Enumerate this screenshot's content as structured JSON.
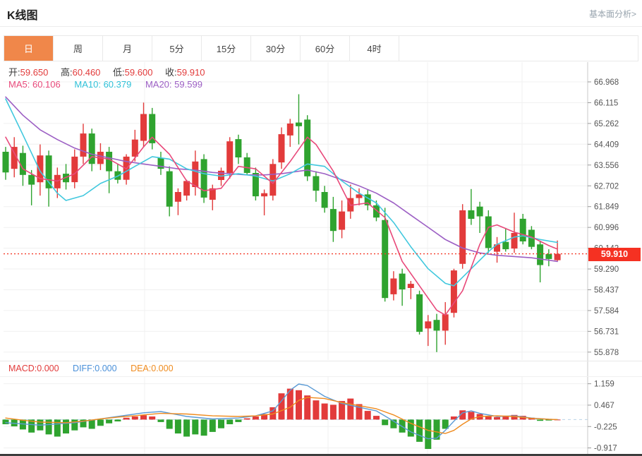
{
  "header": {
    "title": "K线图",
    "link": "基本面分析>"
  },
  "tabs": {
    "items": [
      "日",
      "周",
      "月",
      "5分",
      "15分",
      "30分",
      "60分",
      "4时"
    ],
    "active": "日",
    "active_index": 0
  },
  "quote_bar": {
    "open_label": "开:",
    "open": "59.650",
    "high_label": "高:",
    "high": "60.460",
    "low_label": "低:",
    "low": "59.600",
    "close_label": "收:",
    "close": "59.910"
  },
  "ma_bar": {
    "ma5_label": "MA5:",
    "ma5": "60.106",
    "ma10_label": "MA10:",
    "ma10": "60.379",
    "ma20_label": "MA20:",
    "ma20": "59.599"
  },
  "macd_bar": {
    "macd_label": "MACD:",
    "macd": "0.000",
    "diff_label": "DIFF:",
    "diff": "0.000",
    "dea_label": "DEA:",
    "dea": "0.000"
  },
  "price_tag": {
    "value": "59.910"
  },
  "colors": {
    "up": "#e23b3b",
    "down": "#2fa32f",
    "ma5": "#e8497a",
    "ma10": "#41c8de",
    "ma20": "#9c5fc4",
    "diff": "#5b9bd5",
    "dea": "#ef8b1e",
    "price": "#f53b2a",
    "tab_active": "#f0874a",
    "grid": "#f0f0f0",
    "axis": "#c8c8c8",
    "axis_text": "#555555",
    "zero_dash": "#b9d2e8"
  },
  "chart_data": [
    {
      "type": "candlestick",
      "title": "K线图 (日)",
      "legend": [
        "MA5",
        "MA10",
        "MA20"
      ],
      "y_axis_labels": [
        "66.968",
        "66.115",
        "65.262",
        "64.409",
        "63.556",
        "62.702",
        "61.849",
        "60.996",
        "60.142",
        "59.290",
        "58.437",
        "57.584",
        "56.731",
        "55.878"
      ],
      "ylim": [
        55.45,
        67.3
      ],
      "grid": true,
      "price_line": 59.91,
      "last_ohlc": {
        "open": 59.65,
        "high": 60.46,
        "low": 59.6,
        "close": 59.91
      },
      "candles": [
        [
          64.1,
          64.3,
          62.95,
          63.25
        ],
        [
          63.4,
          64.7,
          63.05,
          64.3
        ],
        [
          64.05,
          64.35,
          62.7,
          63.15
        ],
        [
          63.15,
          63.35,
          61.9,
          62.75
        ],
        [
          62.85,
          64.4,
          62.3,
          63.95
        ],
        [
          63.95,
          64.15,
          61.85,
          62.6
        ],
        [
          62.6,
          63.45,
          62.2,
          63.15
        ],
        [
          63.2,
          63.6,
          62.55,
          62.85
        ],
        [
          62.85,
          64.2,
          62.6,
          63.9
        ],
        [
          63.9,
          65.25,
          63.6,
          64.85
        ],
        [
          64.85,
          65.05,
          63.3,
          63.6
        ],
        [
          63.6,
          64.45,
          63.35,
          64.1
        ],
        [
          64.1,
          64.3,
          62.4,
          63.3
        ],
        [
          63.3,
          63.6,
          62.8,
          62.95
        ],
        [
          62.95,
          64.0,
          62.75,
          63.9
        ],
        [
          63.9,
          65.0,
          63.7,
          64.6
        ],
        [
          64.55,
          66.12,
          64.3,
          65.65
        ],
        [
          65.65,
          65.9,
          64.2,
          64.45
        ],
        [
          63.85,
          64.1,
          63.15,
          63.4
        ],
        [
          63.3,
          63.5,
          61.45,
          61.85
        ],
        [
          62.05,
          62.6,
          61.5,
          62.45
        ],
        [
          62.3,
          62.95,
          62.1,
          62.9
        ],
        [
          62.65,
          64.15,
          62.3,
          63.7
        ],
        [
          63.8,
          64.0,
          62.0,
          62.22
        ],
        [
          62.13,
          62.75,
          61.7,
          62.6
        ],
        [
          62.94,
          63.45,
          62.7,
          63.32
        ],
        [
          63.23,
          64.7,
          63.0,
          64.53
        ],
        [
          64.62,
          64.8,
          63.6,
          63.87
        ],
        [
          63.87,
          64.05,
          63.15,
          63.23
        ],
        [
          63.23,
          63.45,
          62.1,
          62.27
        ],
        [
          62.27,
          62.55,
          61.49,
          62.4
        ],
        [
          62.3,
          63.8,
          62.1,
          63.6
        ],
        [
          63.66,
          65.1,
          63.4,
          64.82
        ],
        [
          64.77,
          65.45,
          64.3,
          65.26
        ],
        [
          65.3,
          66.46,
          64.4,
          65.15
        ],
        [
          65.42,
          65.6,
          62.9,
          63.09
        ],
        [
          63.1,
          63.3,
          62.05,
          62.5
        ],
        [
          62.45,
          62.7,
          61.6,
          61.8
        ],
        [
          61.75,
          62.25,
          60.4,
          60.85
        ],
        [
          60.9,
          62.1,
          60.55,
          61.65
        ],
        [
          61.65,
          62.75,
          61.35,
          62.2
        ],
        [
          62.2,
          62.6,
          61.9,
          62.35
        ],
        [
          62.35,
          62.55,
          61.7,
          61.9
        ],
        [
          61.9,
          62.1,
          61.25,
          61.4
        ],
        [
          61.3,
          61.8,
          57.95,
          58.1
        ],
        [
          58.25,
          59.2,
          58.0,
          58.9
        ],
        [
          59.1,
          59.3,
          57.78,
          58.45
        ],
        [
          58.51,
          58.8,
          58.05,
          58.68
        ],
        [
          58.25,
          58.4,
          56.6,
          56.71
        ],
        [
          56.85,
          57.4,
          56.13,
          57.14
        ],
        [
          57.2,
          57.45,
          55.88,
          56.76
        ],
        [
          56.76,
          57.93,
          56.18,
          57.43
        ],
        [
          57.49,
          59.3,
          57.3,
          59.23
        ],
        [
          59.5,
          61.95,
          59.3,
          61.7
        ],
        [
          61.7,
          62.57,
          61.1,
          61.35
        ],
        [
          61.85,
          62.05,
          60.77,
          61.45
        ],
        [
          61.45,
          61.7,
          59.95,
          60.15
        ],
        [
          60.0,
          60.6,
          59.55,
          60.3
        ],
        [
          60.4,
          60.95,
          60.0,
          60.1
        ],
        [
          60.13,
          61.6,
          59.95,
          60.77
        ],
        [
          61.35,
          61.55,
          60.3,
          60.42
        ],
        [
          60.9,
          61.05,
          60.1,
          60.2
        ],
        [
          60.3,
          60.45,
          58.74,
          59.45
        ],
        [
          59.9,
          60.1,
          59.4,
          59.7
        ],
        [
          59.65,
          60.46,
          59.6,
          59.91
        ]
      ],
      "ma5_points": [
        [
          1,
          64.7
        ],
        [
          3,
          63.4
        ],
        [
          5,
          63.0
        ],
        [
          7,
          62.9
        ],
        [
          9,
          63.2
        ],
        [
          11,
          63.9
        ],
        [
          13,
          63.8
        ],
        [
          15,
          63.4
        ],
        [
          17,
          64.3
        ],
        [
          18,
          64.7
        ],
        [
          20,
          64.0
        ],
        [
          22,
          62.9
        ],
        [
          24,
          62.5
        ],
        [
          26,
          62.6
        ],
        [
          28,
          63.5
        ],
        [
          30,
          63.4
        ],
        [
          32,
          62.8
        ],
        [
          34,
          63.7
        ],
        [
          36,
          64.7
        ],
        [
          37,
          64.4
        ],
        [
          39,
          63.3
        ],
        [
          41,
          61.9
        ],
        [
          43,
          62.0
        ],
        [
          45,
          61.4
        ],
        [
          47,
          59.6
        ],
        [
          49,
          58.6
        ],
        [
          51,
          57.6
        ],
        [
          52,
          57.4
        ],
        [
          54,
          58.4
        ],
        [
          56,
          60.3
        ],
        [
          57,
          61.0
        ],
        [
          58,
          61.1
        ],
        [
          60,
          60.8
        ],
        [
          62,
          60.6
        ],
        [
          64,
          60.25
        ],
        [
          65,
          60.106
        ]
      ],
      "ma10_points": [
        [
          1,
          66.27
        ],
        [
          3,
          64.8
        ],
        [
          5,
          63.3
        ],
        [
          7,
          62.4
        ],
        [
          8,
          62.1
        ],
        [
          10,
          62.3
        ],
        [
          12,
          62.8
        ],
        [
          14,
          63.1
        ],
        [
          16,
          63.5
        ],
        [
          18,
          63.9
        ],
        [
          20,
          63.8
        ],
        [
          22,
          63.4
        ],
        [
          24,
          63.2
        ],
        [
          26,
          63.1
        ],
        [
          28,
          63.2
        ],
        [
          30,
          63.1
        ],
        [
          32,
          62.9
        ],
        [
          34,
          63.2
        ],
        [
          36,
          63.6
        ],
        [
          38,
          63.5
        ],
        [
          40,
          62.9
        ],
        [
          42,
          62.4
        ],
        [
          44,
          62.0
        ],
        [
          46,
          61.2
        ],
        [
          48,
          60.2
        ],
        [
          50,
          59.3
        ],
        [
          52,
          58.7
        ],
        [
          53,
          58.6
        ],
        [
          55,
          59.3
        ],
        [
          57,
          60.0
        ],
        [
          58,
          60.3
        ],
        [
          60,
          60.6
        ],
        [
          61,
          60.65
        ],
        [
          63,
          60.5
        ],
        [
          65,
          60.379
        ]
      ],
      "ma20_points": [
        [
          1,
          66.35
        ],
        [
          3,
          65.6
        ],
        [
          5,
          65.0
        ],
        [
          7,
          64.6
        ],
        [
          9,
          64.25
        ],
        [
          11,
          64.0
        ],
        [
          13,
          63.85
        ],
        [
          15,
          63.7
        ],
        [
          17,
          63.6
        ],
        [
          19,
          63.5
        ],
        [
          21,
          63.4
        ],
        [
          23,
          63.35
        ],
        [
          25,
          63.25
        ],
        [
          27,
          63.2
        ],
        [
          29,
          63.15
        ],
        [
          31,
          63.15
        ],
        [
          33,
          63.2
        ],
        [
          35,
          63.3
        ],
        [
          36,
          63.35
        ],
        [
          38,
          63.2
        ],
        [
          40,
          62.95
        ],
        [
          42,
          62.7
        ],
        [
          44,
          62.4
        ],
        [
          46,
          62.0
        ],
        [
          48,
          61.5
        ],
        [
          50,
          61.0
        ],
        [
          52,
          60.5
        ],
        [
          54,
          60.15
        ],
        [
          56,
          59.95
        ],
        [
          58,
          59.85
        ],
        [
          60,
          59.8
        ],
        [
          62,
          59.75
        ],
        [
          64,
          59.65
        ],
        [
          65,
          59.599
        ]
      ]
    },
    {
      "type": "bar",
      "title": "MACD",
      "y_axis_labels": [
        "1.159",
        "0.467",
        "-0.225",
        "-0.917"
      ],
      "ylim": [
        -1.15,
        1.35
      ],
      "values": [
        -0.15,
        -0.22,
        -0.32,
        -0.42,
        -0.35,
        -0.48,
        -0.55,
        -0.45,
        -0.35,
        -0.25,
        -0.3,
        -0.2,
        -0.12,
        -0.06,
        0.06,
        0.1,
        0.14,
        0.1,
        -0.08,
        -0.3,
        -0.45,
        -0.55,
        -0.48,
        -0.52,
        -0.4,
        -0.28,
        -0.15,
        -0.08,
        0.04,
        0.1,
        0.18,
        0.4,
        0.85,
        1.0,
        0.95,
        0.78,
        0.62,
        0.52,
        0.48,
        0.6,
        0.68,
        0.5,
        0.28,
        0.12,
        -0.18,
        -0.28,
        -0.42,
        -0.55,
        -0.72,
        -0.95,
        -0.65,
        -0.3,
        0.1,
        0.3,
        0.25,
        0.18,
        0.12,
        0.08,
        0.1,
        0.15,
        0.12,
        0.06,
        -0.04,
        -0.03,
        0.0
      ],
      "diff_points": [
        [
          1,
          -0.1
        ],
        [
          5,
          -0.18
        ],
        [
          9,
          -0.1
        ],
        [
          12,
          0.02
        ],
        [
          14,
          0.1
        ],
        [
          17,
          0.22
        ],
        [
          19,
          0.26
        ],
        [
          22,
          0.1
        ],
        [
          25,
          0.02
        ],
        [
          28,
          0.05
        ],
        [
          30,
          0.12
        ],
        [
          32,
          0.28
        ],
        [
          33,
          0.6
        ],
        [
          34,
          0.95
        ],
        [
          35,
          1.15
        ],
        [
          36,
          1.1
        ],
        [
          38,
          0.75
        ],
        [
          40,
          0.52
        ],
        [
          42,
          0.4
        ],
        [
          44,
          0.28
        ],
        [
          46,
          -0.05
        ],
        [
          48,
          -0.4
        ],
        [
          50,
          -0.62
        ],
        [
          51,
          -0.6
        ],
        [
          52,
          -0.35
        ],
        [
          53,
          -0.05
        ],
        [
          54,
          0.22
        ],
        [
          55,
          0.28
        ],
        [
          56,
          0.2
        ],
        [
          58,
          0.1
        ],
        [
          60,
          0.12
        ],
        [
          62,
          0.05
        ],
        [
          64,
          0.01
        ],
        [
          65,
          0.0
        ]
      ],
      "dea_points": [
        [
          1,
          0.05
        ],
        [
          3,
          -0.02
        ],
        [
          5,
          -0.08
        ],
        [
          8,
          -0.1
        ],
        [
          10,
          -0.05
        ],
        [
          12,
          0.02
        ],
        [
          14,
          0.08
        ],
        [
          17,
          0.15
        ],
        [
          19,
          0.2
        ],
        [
          22,
          0.18
        ],
        [
          25,
          0.12
        ],
        [
          28,
          0.1
        ],
        [
          30,
          0.12
        ],
        [
          32,
          0.18
        ],
        [
          34,
          0.4
        ],
        [
          35,
          0.62
        ],
        [
          36,
          0.72
        ],
        [
          38,
          0.68
        ],
        [
          40,
          0.55
        ],
        [
          42,
          0.45
        ],
        [
          44,
          0.35
        ],
        [
          46,
          0.15
        ],
        [
          48,
          -0.12
        ],
        [
          50,
          -0.35
        ],
        [
          52,
          -0.45
        ],
        [
          53,
          -0.35
        ],
        [
          54,
          -0.15
        ],
        [
          55,
          0.02
        ],
        [
          56,
          0.1
        ],
        [
          58,
          0.12
        ],
        [
          60,
          0.1
        ],
        [
          62,
          0.04
        ],
        [
          64,
          0.01
        ],
        [
          65,
          0.0
        ]
      ]
    }
  ]
}
